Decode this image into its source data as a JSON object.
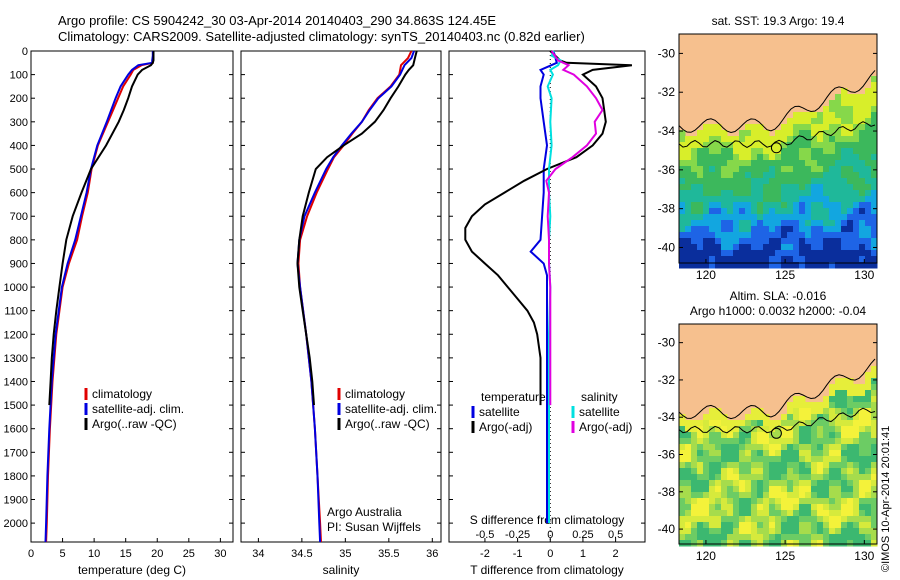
{
  "header": {
    "line1": "Argo profile: CS 5904242_30 03-Apr-2014 20140403_290 34.863S 124.45E",
    "line2": "Climatology: CARS2009. Satellite-adjusted climatology: synTS_20140403.nc (0.82d earlier)"
  },
  "colors": {
    "clim": "#e00000",
    "sat": "#0000e0",
    "argo": "#000000",
    "satS": "#00e0e0",
    "argoS": "#e000e0",
    "land": "#f6c08e"
  },
  "chart_data": [
    {
      "id": "temperature",
      "type": "line",
      "xlabel": "temperature (deg C)",
      "xlim": [
        0,
        32
      ],
      "ylim": [
        2080,
        0
      ],
      "xticks": [
        "0",
        "5",
        "10",
        "15",
        "20",
        "25",
        "30"
      ],
      "yticks": [
        "0",
        "100",
        "200",
        "300",
        "400",
        "500",
        "600",
        "700",
        "800",
        "900",
        "1000",
        "1100",
        "1200",
        "1300",
        "1400",
        "1500",
        "1600",
        "1700",
        "1800",
        "1900",
        "2000"
      ],
      "legend": [
        "climatology",
        "satellite-adj. clim.",
        "Argo(..raw -QC)"
      ],
      "series": [
        {
          "name": "climatology",
          "depth": [
            0,
            20,
            40,
            50,
            60,
            80,
            100,
            150,
            200,
            250,
            300,
            400,
            500,
            600,
            700,
            800,
            900,
            1000,
            1200,
            1400,
            1600,
            1800,
            2000,
            2080
          ],
          "values": [
            19.4,
            19.4,
            19.3,
            19.3,
            17.5,
            16.2,
            15.8,
            14.6,
            13.8,
            13.0,
            12.2,
            10.6,
            9.6,
            9.0,
            8.1,
            7.3,
            6.0,
            5.0,
            4.0,
            3.4,
            3.0,
            2.7,
            2.5,
            2.4
          ]
        },
        {
          "name": "satellite-adj. clim.",
          "depth": [
            0,
            20,
            40,
            50,
            60,
            80,
            100,
            150,
            200,
            250,
            300,
            400,
            500,
            600,
            700,
            800,
            900,
            1000,
            1200,
            1400,
            1600,
            1800,
            2000,
            2080
          ],
          "values": [
            19.3,
            19.3,
            19.2,
            19.2,
            17.0,
            16.0,
            15.4,
            14.2,
            13.4,
            12.7,
            12.0,
            10.5,
            9.5,
            8.8,
            7.9,
            7.0,
            5.8,
            4.9,
            3.9,
            3.3,
            2.9,
            2.6,
            2.4,
            2.3
          ]
        },
        {
          "name": "Argo(..raw -QC)",
          "depth": [
            0,
            20,
            40,
            50,
            60,
            80,
            100,
            150,
            200,
            250,
            300,
            400,
            500,
            600,
            700,
            800,
            900,
            1000,
            1100,
            1200,
            1300,
            1400,
            1500
          ],
          "values": [
            19.4,
            19.4,
            19.4,
            19.3,
            19.0,
            17.6,
            16.9,
            16.0,
            15.4,
            14.7,
            13.9,
            11.9,
            9.5,
            8.0,
            6.6,
            5.6,
            5.0,
            4.5,
            4.0,
            3.6,
            3.3,
            3.1,
            2.9
          ]
        }
      ]
    },
    {
      "id": "salinity",
      "type": "line",
      "xlabel": "salinity",
      "xlim": [
        33.8,
        36.1
      ],
      "ylim": [
        2080,
        0
      ],
      "xticks": [
        "34",
        "34.5",
        "35",
        "35.5",
        "36"
      ],
      "legend": [
        "climatology",
        "satellite-adj. clim.",
        "Argo(..raw -QC)"
      ],
      "annotations": [
        "Argo Australia",
        "PI: Susan Wijffels"
      ],
      "series": [
        {
          "name": "climatology",
          "depth": [
            0,
            30,
            60,
            100,
            150,
            200,
            250,
            300,
            350,
            400,
            450,
            500,
            600,
            700,
            800,
            900,
            1000,
            1200,
            1400,
            1600,
            1800,
            2000,
            2080
          ],
          "values": [
            35.76,
            35.72,
            35.64,
            35.62,
            35.52,
            35.37,
            35.27,
            35.19,
            35.08,
            34.98,
            34.87,
            34.8,
            34.67,
            34.56,
            34.48,
            34.46,
            34.48,
            34.55,
            34.61,
            34.65,
            34.68,
            34.71,
            34.72
          ]
        },
        {
          "name": "satellite-adj. clim.",
          "depth": [
            0,
            30,
            60,
            100,
            150,
            200,
            250,
            300,
            350,
            400,
            450,
            500,
            600,
            700,
            800,
            900,
            1000,
            1200,
            1400,
            1600,
            1800,
            2000,
            2080
          ],
          "values": [
            35.79,
            35.76,
            35.68,
            35.63,
            35.53,
            35.38,
            35.28,
            35.19,
            35.07,
            34.96,
            34.86,
            34.78,
            34.65,
            34.53,
            34.47,
            34.45,
            34.48,
            34.55,
            34.61,
            34.65,
            34.68,
            34.7,
            34.71
          ]
        },
        {
          "name": "Argo(..raw -QC)",
          "depth": [
            0,
            30,
            60,
            80,
            100,
            150,
            200,
            250,
            300,
            350,
            400,
            450,
            500,
            600,
            700,
            800,
            900,
            1000,
            1100,
            1200,
            1300,
            1400,
            1500
          ],
          "values": [
            35.82,
            35.8,
            35.78,
            35.73,
            35.69,
            35.61,
            35.52,
            35.44,
            35.34,
            35.19,
            34.98,
            34.79,
            34.66,
            34.58,
            34.51,
            34.47,
            34.45,
            34.47,
            34.51,
            34.55,
            34.59,
            34.62,
            34.64
          ]
        }
      ]
    },
    {
      "id": "difference",
      "type": "line",
      "xlabel": "T difference from climatology",
      "xlabel2": "S difference from climatology",
      "xlim": [
        -3.1,
        2.9
      ],
      "ylim": [
        2080,
        0
      ],
      "xticks": [
        "-2",
        "-1",
        "0",
        "1",
        "2"
      ],
      "xticks2": [
        "-0.5",
        "-0.25",
        "0",
        "0.25",
        "0.5"
      ],
      "legend_titles": [
        "temperature",
        "salinity"
      ],
      "legend": [
        "satellite",
        "Argo(-adj)",
        "satellite",
        "Argo(-adj)"
      ],
      "series": [
        {
          "name": "temperature satellite",
          "depth": [
            0,
            50,
            80,
            100,
            150,
            200,
            300,
            400,
            500,
            600,
            700,
            800,
            850,
            900,
            950,
            1000,
            1100,
            1200,
            1300,
            1400,
            1600,
            1800,
            2000
          ],
          "values": [
            0.1,
            0.2,
            -0.3,
            -0.2,
            -0.3,
            -0.3,
            -0.2,
            -0.1,
            -0.2,
            -0.2,
            -0.25,
            -0.3,
            -0.6,
            -0.2,
            -0.1,
            -0.1,
            -0.1,
            -0.1,
            -0.1,
            -0.1,
            -0.1,
            -0.1,
            -0.1
          ]
        },
        {
          "name": "temperature Argo(-adj)",
          "depth": [
            0,
            40,
            50,
            60,
            80,
            100,
            150,
            200,
            300,
            350,
            400,
            450,
            500,
            550,
            600,
            650,
            700,
            750,
            800,
            850,
            900,
            950,
            1000,
            1050,
            1100,
            1150,
            1200,
            1300,
            1400,
            1500
          ],
          "values": [
            0.0,
            0.3,
            0.5,
            2.5,
            1.3,
            1.0,
            1.4,
            1.6,
            1.7,
            1.6,
            1.3,
            0.8,
            -0.1,
            -0.8,
            -1.4,
            -2.0,
            -2.4,
            -2.6,
            -2.6,
            -2.4,
            -2.0,
            -1.6,
            -1.3,
            -1.0,
            -0.7,
            -0.5,
            -0.4,
            -0.3,
            -0.3,
            -0.3
          ]
        },
        {
          "name": "salinity satellite",
          "depth": [
            0,
            20,
            40,
            60,
            80,
            100,
            150,
            200,
            300,
            400,
            500,
            600,
            700,
            800,
            900,
            1000,
            1200,
            1400,
            1600,
            1800,
            2000
          ],
          "values": [
            0.03,
            0.01,
            0.08,
            0.06,
            0.0,
            0.02,
            -0.02,
            0.01,
            0.0,
            0.01,
            -0.01,
            -0.01,
            0.0,
            -0.01,
            -0.01,
            0.0,
            -0.01,
            -0.01,
            -0.01,
            -0.01,
            -0.01
          ]
        },
        {
          "name": "salinity Argo(-adj)",
          "depth": [
            0,
            40,
            60,
            80,
            100,
            150,
            200,
            250,
            300,
            350,
            400,
            450,
            500,
            550,
            600,
            700,
            800,
            900,
            1000,
            1100,
            1200,
            1300,
            1400,
            1500
          ],
          "values": [
            0.01,
            0.06,
            0.14,
            0.1,
            0.18,
            0.28,
            0.35,
            0.4,
            0.34,
            0.35,
            0.28,
            0.17,
            0.04,
            -0.03,
            -0.01,
            -0.02,
            -0.01,
            -0.01,
            0.0,
            0.0,
            0.0,
            0.0,
            0.0,
            0.0
          ]
        }
      ]
    }
  ],
  "maps": {
    "sst": {
      "title": "sat. SST: 19.3 Argo: 19.4",
      "lon_ticks": [
        "120",
        "125",
        "130"
      ],
      "lat_ticks": [
        "-30",
        "-32",
        "-34",
        "-36",
        "-38",
        "-40"
      ]
    },
    "sla": {
      "title1": "Altim. SLA: -0.016",
      "title2": "Argo h1000: 0.0032 h2000: -0.04",
      "lon_ticks": [
        "120",
        "125",
        "130"
      ],
      "lat_ticks": [
        "-30",
        "-32",
        "-34",
        "-36",
        "-38",
        "-40"
      ]
    }
  },
  "footer": {
    "credit": "©IMOS 10-Apr-2014 20:01:41"
  }
}
